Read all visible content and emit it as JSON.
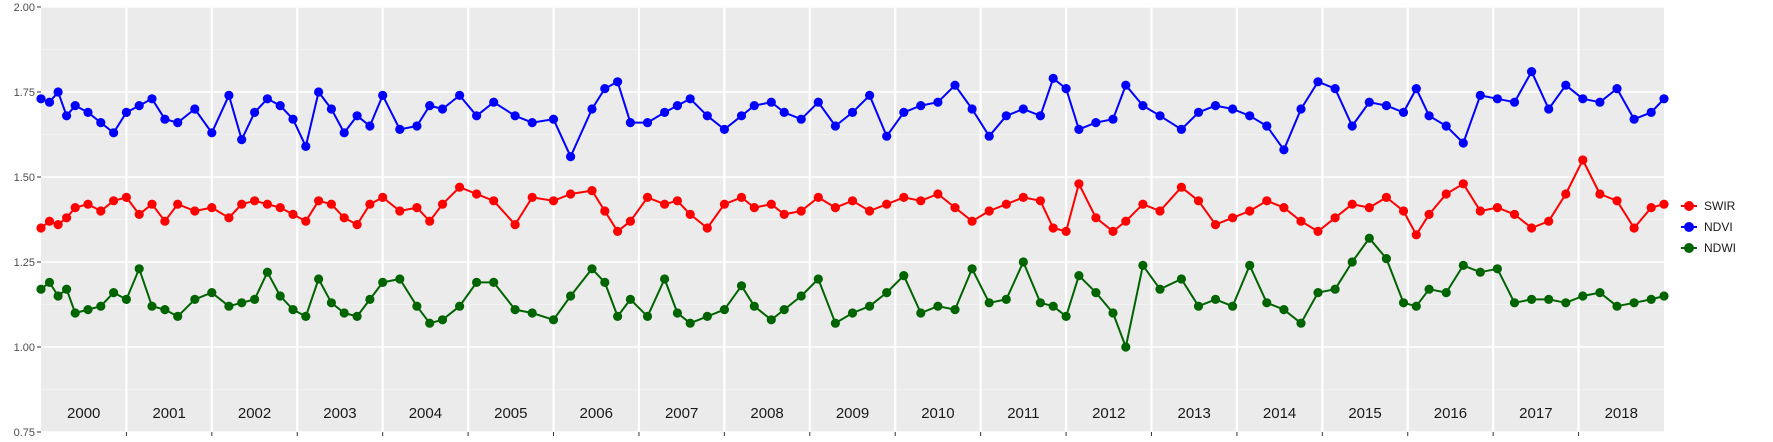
{
  "chart_data": {
    "type": "line",
    "title": "",
    "xlabel": "",
    "ylabel": "",
    "xlim": [
      2000,
      2019
    ],
    "ylim": [
      0.75,
      2.0
    ],
    "y_ticks": [
      "0.75",
      "1.00",
      "1.25",
      "1.50",
      "1.75",
      "2.00"
    ],
    "y_tick_values": [
      0.75,
      1.0,
      1.25,
      1.5,
      1.75,
      2.0
    ],
    "years": [
      "2000",
      "2001",
      "2002",
      "2003",
      "2004",
      "2005",
      "2006",
      "2007",
      "2008",
      "2009",
      "2010",
      "2011",
      "2012",
      "2013",
      "2014",
      "2015",
      "2016",
      "2017",
      "2018"
    ],
    "grid": true,
    "legend_position": "right",
    "colors": {
      "panel": "#ebebeb",
      "grid_major": "#ffffff",
      "grid_minor": "#f5f5f5"
    },
    "series": [
      {
        "name": "SWIR",
        "color": "#ff0000",
        "x": [
          2000.0,
          2000.1,
          2000.2,
          2000.3,
          2000.4,
          2000.55,
          2000.7,
          2000.85,
          2001.0,
          2001.15,
          2001.3,
          2001.45,
          2001.6,
          2001.8,
          2002.0,
          2002.2,
          2002.35,
          2002.5,
          2002.65,
          2002.8,
          2002.95,
          2003.1,
          2003.25,
          2003.4,
          2003.55,
          2003.7,
          2003.85,
          2004.0,
          2004.2,
          2004.4,
          2004.55,
          2004.7,
          2004.9,
          2005.1,
          2005.3,
          2005.55,
          2005.75,
          2006.0,
          2006.2,
          2006.45,
          2006.6,
          2006.75,
          2006.9,
          2007.1,
          2007.3,
          2007.45,
          2007.6,
          2007.8,
          2008.0,
          2008.2,
          2008.35,
          2008.55,
          2008.7,
          2008.9,
          2009.1,
          2009.3,
          2009.5,
          2009.7,
          2009.9,
          2010.1,
          2010.3,
          2010.5,
          2010.7,
          2010.9,
          2011.1,
          2011.3,
          2011.5,
          2011.7,
          2011.85,
          2012.0,
          2012.15,
          2012.35,
          2012.55,
          2012.7,
          2012.9,
          2013.1,
          2013.35,
          2013.55,
          2013.75,
          2013.95,
          2014.15,
          2014.35,
          2014.55,
          2014.75,
          2014.95,
          2015.15,
          2015.35,
          2015.55,
          2015.75,
          2015.95,
          2016.1,
          2016.25,
          2016.45,
          2016.65,
          2016.85,
          2017.05,
          2017.25,
          2017.45,
          2017.65,
          2017.85,
          2018.05,
          2018.25,
          2018.45,
          2018.65,
          2018.85,
          2019.0
        ],
        "y": [
          1.35,
          1.37,
          1.36,
          1.38,
          1.41,
          1.42,
          1.4,
          1.43,
          1.44,
          1.39,
          1.42,
          1.37,
          1.42,
          1.4,
          1.41,
          1.38,
          1.42,
          1.43,
          1.42,
          1.41,
          1.39,
          1.37,
          1.43,
          1.42,
          1.38,
          1.36,
          1.42,
          1.44,
          1.4,
          1.41,
          1.37,
          1.42,
          1.47,
          1.45,
          1.43,
          1.36,
          1.44,
          1.43,
          1.45,
          1.46,
          1.4,
          1.34,
          1.37,
          1.44,
          1.42,
          1.43,
          1.39,
          1.35,
          1.42,
          1.44,
          1.41,
          1.42,
          1.39,
          1.4,
          1.44,
          1.41,
          1.43,
          1.4,
          1.42,
          1.44,
          1.43,
          1.45,
          1.41,
          1.37,
          1.4,
          1.42,
          1.44,
          1.43,
          1.35,
          1.34,
          1.48,
          1.38,
          1.34,
          1.37,
          1.42,
          1.4,
          1.47,
          1.43,
          1.36,
          1.38,
          1.4,
          1.43,
          1.41,
          1.37,
          1.34,
          1.38,
          1.42,
          1.41,
          1.44,
          1.4,
          1.33,
          1.39,
          1.45,
          1.48,
          1.4,
          1.41,
          1.39,
          1.35,
          1.37,
          1.45,
          1.55,
          1.45,
          1.43,
          1.35,
          1.41,
          1.42
        ]
      },
      {
        "name": "NDVI",
        "color": "#0000ff",
        "x": [
          2000.0,
          2000.1,
          2000.2,
          2000.3,
          2000.4,
          2000.55,
          2000.7,
          2000.85,
          2001.0,
          2001.15,
          2001.3,
          2001.45,
          2001.6,
          2001.8,
          2002.0,
          2002.2,
          2002.35,
          2002.5,
          2002.65,
          2002.8,
          2002.95,
          2003.1,
          2003.25,
          2003.4,
          2003.55,
          2003.7,
          2003.85,
          2004.0,
          2004.2,
          2004.4,
          2004.55,
          2004.7,
          2004.9,
          2005.1,
          2005.3,
          2005.55,
          2005.75,
          2006.0,
          2006.2,
          2006.45,
          2006.6,
          2006.75,
          2006.9,
          2007.1,
          2007.3,
          2007.45,
          2007.6,
          2007.8,
          2008.0,
          2008.2,
          2008.35,
          2008.55,
          2008.7,
          2008.9,
          2009.1,
          2009.3,
          2009.5,
          2009.7,
          2009.9,
          2010.1,
          2010.3,
          2010.5,
          2010.7,
          2010.9,
          2011.1,
          2011.3,
          2011.5,
          2011.7,
          2011.85,
          2012.0,
          2012.15,
          2012.35,
          2012.55,
          2012.7,
          2012.9,
          2013.1,
          2013.35,
          2013.55,
          2013.75,
          2013.95,
          2014.15,
          2014.35,
          2014.55,
          2014.75,
          2014.95,
          2015.15,
          2015.35,
          2015.55,
          2015.75,
          2015.95,
          2016.1,
          2016.25,
          2016.45,
          2016.65,
          2016.85,
          2017.05,
          2017.25,
          2017.45,
          2017.65,
          2017.85,
          2018.05,
          2018.25,
          2018.45,
          2018.65,
          2018.85,
          2019.0
        ],
        "y": [
          1.73,
          1.72,
          1.75,
          1.68,
          1.71,
          1.69,
          1.66,
          1.63,
          1.69,
          1.71,
          1.73,
          1.67,
          1.66,
          1.7,
          1.63,
          1.74,
          1.61,
          1.69,
          1.73,
          1.71,
          1.67,
          1.59,
          1.75,
          1.7,
          1.63,
          1.68,
          1.65,
          1.74,
          1.64,
          1.65,
          1.71,
          1.7,
          1.74,
          1.68,
          1.72,
          1.68,
          1.66,
          1.67,
          1.56,
          1.7,
          1.76,
          1.78,
          1.66,
          1.66,
          1.69,
          1.71,
          1.73,
          1.68,
          1.64,
          1.68,
          1.71,
          1.72,
          1.69,
          1.67,
          1.72,
          1.65,
          1.69,
          1.74,
          1.62,
          1.69,
          1.71,
          1.72,
          1.77,
          1.7,
          1.62,
          1.68,
          1.7,
          1.68,
          1.79,
          1.76,
          1.64,
          1.66,
          1.67,
          1.77,
          1.71,
          1.68,
          1.64,
          1.69,
          1.71,
          1.7,
          1.68,
          1.65,
          1.58,
          1.7,
          1.78,
          1.76,
          1.65,
          1.72,
          1.71,
          1.69,
          1.76,
          1.68,
          1.65,
          1.6,
          1.74,
          1.73,
          1.72,
          1.81,
          1.7,
          1.77,
          1.73,
          1.72,
          1.76,
          1.67,
          1.69,
          1.73
        ]
      },
      {
        "name": "NDWI",
        "color": "#006400",
        "x": [
          2000.0,
          2000.1,
          2000.2,
          2000.3,
          2000.4,
          2000.55,
          2000.7,
          2000.85,
          2001.0,
          2001.15,
          2001.3,
          2001.45,
          2001.6,
          2001.8,
          2002.0,
          2002.2,
          2002.35,
          2002.5,
          2002.65,
          2002.8,
          2002.95,
          2003.1,
          2003.25,
          2003.4,
          2003.55,
          2003.7,
          2003.85,
          2004.0,
          2004.2,
          2004.4,
          2004.55,
          2004.7,
          2004.9,
          2005.1,
          2005.3,
          2005.55,
          2005.75,
          2006.0,
          2006.2,
          2006.45,
          2006.6,
          2006.75,
          2006.9,
          2007.1,
          2007.3,
          2007.45,
          2007.6,
          2007.8,
          2008.0,
          2008.2,
          2008.35,
          2008.55,
          2008.7,
          2008.9,
          2009.1,
          2009.3,
          2009.5,
          2009.7,
          2009.9,
          2010.1,
          2010.3,
          2010.5,
          2010.7,
          2010.9,
          2011.1,
          2011.3,
          2011.5,
          2011.7,
          2011.85,
          2012.0,
          2012.15,
          2012.35,
          2012.55,
          2012.7,
          2012.9,
          2013.1,
          2013.35,
          2013.55,
          2013.75,
          2013.95,
          2014.15,
          2014.35,
          2014.55,
          2014.75,
          2014.95,
          2015.15,
          2015.35,
          2015.55,
          2015.75,
          2015.95,
          2016.1,
          2016.25,
          2016.45,
          2016.65,
          2016.85,
          2017.05,
          2017.25,
          2017.45,
          2017.65,
          2017.85,
          2018.05,
          2018.25,
          2018.45,
          2018.65,
          2018.85,
          2019.0
        ],
        "y": [
          1.17,
          1.19,
          1.15,
          1.17,
          1.1,
          1.11,
          1.12,
          1.16,
          1.14,
          1.23,
          1.12,
          1.11,
          1.09,
          1.14,
          1.16,
          1.12,
          1.13,
          1.14,
          1.22,
          1.15,
          1.11,
          1.09,
          1.2,
          1.13,
          1.1,
          1.09,
          1.14,
          1.19,
          1.2,
          1.12,
          1.07,
          1.08,
          1.12,
          1.19,
          1.19,
          1.11,
          1.1,
          1.08,
          1.15,
          1.23,
          1.19,
          1.09,
          1.14,
          1.09,
          1.2,
          1.1,
          1.07,
          1.09,
          1.11,
          1.18,
          1.12,
          1.08,
          1.11,
          1.15,
          1.2,
          1.07,
          1.1,
          1.12,
          1.16,
          1.21,
          1.1,
          1.12,
          1.11,
          1.23,
          1.13,
          1.14,
          1.25,
          1.13,
          1.12,
          1.09,
          1.21,
          1.16,
          1.1,
          1.0,
          1.24,
          1.17,
          1.2,
          1.12,
          1.14,
          1.12,
          1.24,
          1.13,
          1.11,
          1.07,
          1.16,
          1.17,
          1.25,
          1.32,
          1.26,
          1.13,
          1.12,
          1.17,
          1.16,
          1.24,
          1.22,
          1.23,
          1.13,
          1.14,
          1.14,
          1.13,
          1.15,
          1.16,
          1.12,
          1.13,
          1.14,
          1.15
        ]
      }
    ]
  }
}
